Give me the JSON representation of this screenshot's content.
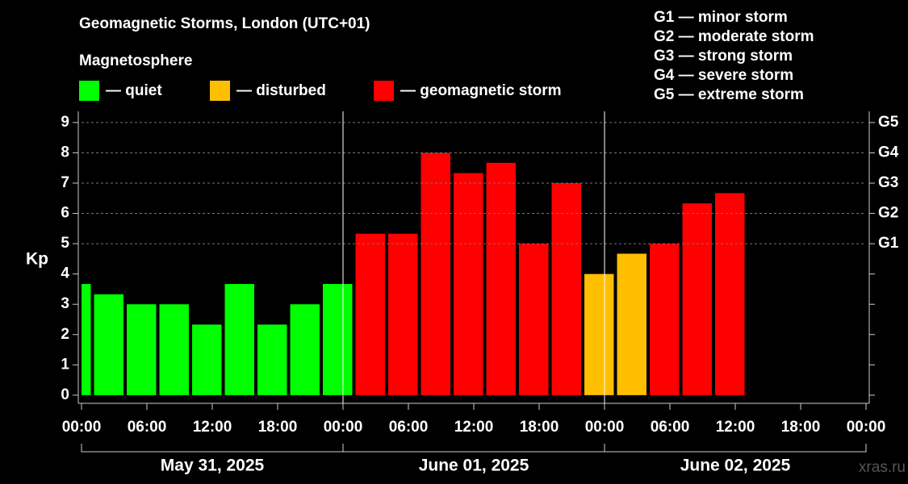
{
  "chart_data": {
    "type": "bar",
    "title": "Geomagnetic Storms, London (UTC+01)",
    "subtitle": "Magnetosphere",
    "y_label": "Kp",
    "watermark": "xras.ru",
    "legend": [
      {
        "name": "— quiet",
        "color": "#00ff00"
      },
      {
        "name": "— disturbed",
        "color": "#ffbf00"
      },
      {
        "name": "— geomagnetic storm",
        "color": "#ff0000"
      }
    ],
    "storm_scale": [
      "G1 — minor storm",
      "G2 — moderate storm",
      "G3 — strong storm",
      "G4 — severe storm",
      "G5 — extreme storm"
    ],
    "x": [
      -0.5,
      2.5,
      5.5,
      8.5,
      11.5,
      14.5,
      17.5,
      20.5,
      23.5,
      26.5,
      29.5,
      32.5,
      35.5,
      38.5,
      41.5,
      44.5,
      47.5,
      50.5,
      53.5,
      56.5,
      59.5
    ],
    "values": [
      3.67,
      3.33,
      3,
      3,
      2.33,
      3.67,
      2.33,
      3,
      3.67,
      5.33,
      5.33,
      8,
      7.33,
      7.67,
      5,
      7,
      4,
      4.67,
      5,
      6.33,
      6.67
    ],
    "bar_colors": [
      "#00ff00",
      "#00ff00",
      "#00ff00",
      "#00ff00",
      "#00ff00",
      "#00ff00",
      "#00ff00",
      "#00ff00",
      "#00ff00",
      "#ff0000",
      "#ff0000",
      "#ff0000",
      "#ff0000",
      "#ff0000",
      "#ff0000",
      "#ff0000",
      "#ffbf00",
      "#ffbf00",
      "#ff0000",
      "#ff0000",
      "#ff0000"
    ],
    "bar_width": 2.7,
    "xlim": [
      0,
      72
    ],
    "xticks": [
      {
        "value": 0,
        "label": "00:00"
      },
      {
        "value": 6,
        "label": "06:00"
      },
      {
        "value": 12,
        "label": "12:00"
      },
      {
        "value": 18,
        "label": "18:00"
      },
      {
        "value": 24,
        "label": "00:00"
      },
      {
        "value": 30,
        "label": "06:00"
      },
      {
        "value": 36,
        "label": "12:00"
      },
      {
        "value": 42,
        "label": "18:00"
      },
      {
        "value": 48,
        "label": "00:00"
      },
      {
        "value": 54,
        "label": "06:00"
      },
      {
        "value": 60,
        "label": "12:00"
      },
      {
        "value": 66,
        "label": "18:00"
      },
      {
        "value": 72,
        "label": "00:00"
      }
    ],
    "days": [
      {
        "start": 0,
        "end": 24,
        "label": "May 31, 2025"
      },
      {
        "start": 24,
        "end": 48,
        "label": "June 01, 2025"
      },
      {
        "start": 48,
        "end": 72,
        "label": "June 02, 2025"
      }
    ],
    "ylim": [
      -0.27,
      9.37
    ],
    "yticks": [
      0,
      1,
      2,
      3,
      4,
      5,
      6,
      7,
      8,
      9
    ],
    "y2lim": [
      -0.27,
      9.37
    ],
    "y2ticks": [
      {
        "value": 5,
        "label": "G1"
      },
      {
        "value": 6,
        "label": "G2"
      },
      {
        "value": 7,
        "label": "G3"
      },
      {
        "value": 8,
        "label": "G4"
      },
      {
        "value": 9,
        "label": "G5"
      }
    ],
    "grid": true
  }
}
